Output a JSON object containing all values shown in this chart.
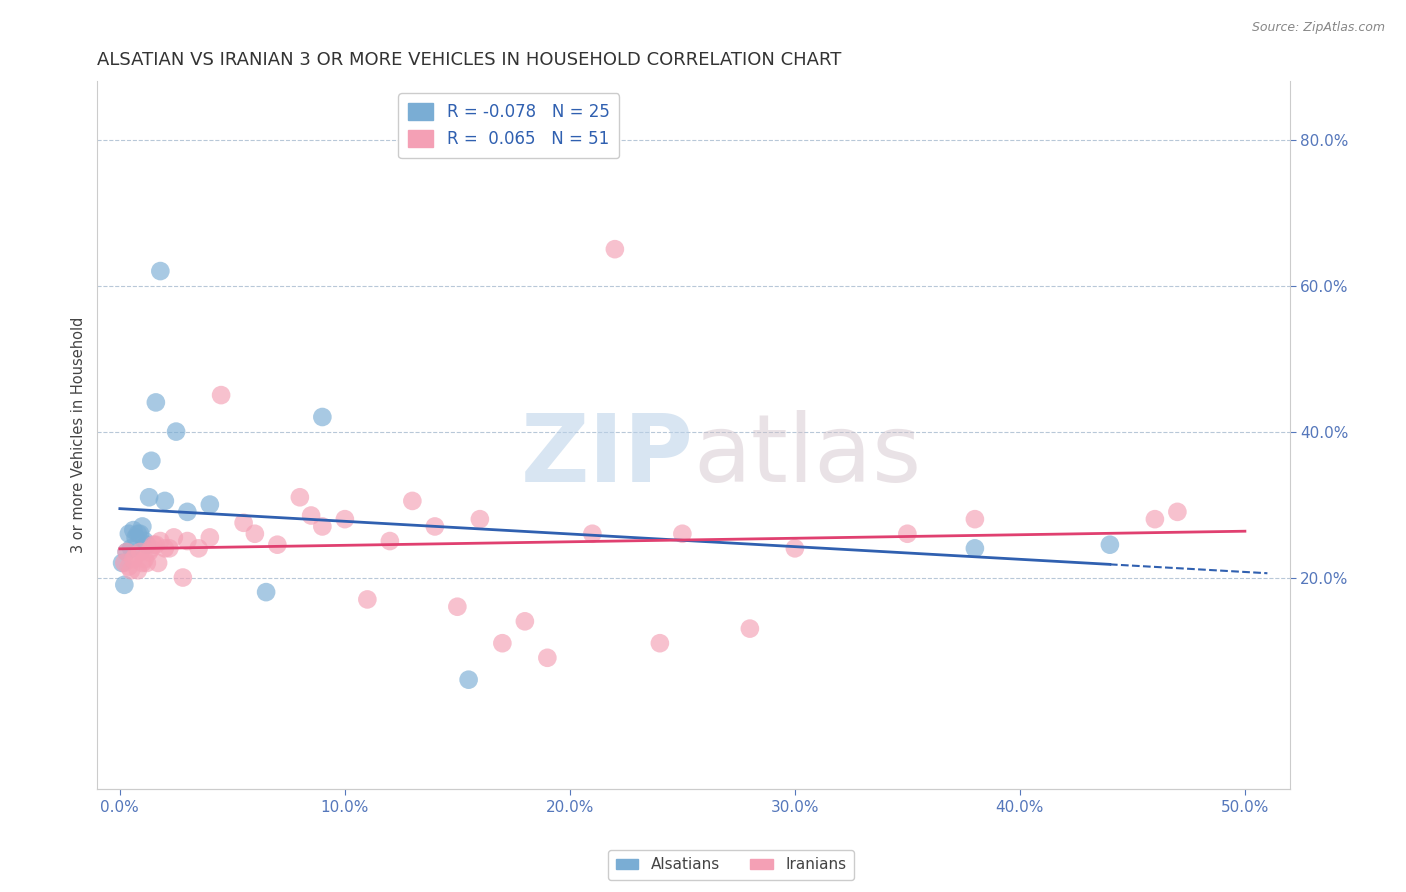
{
  "title": "ALSATIAN VS IRANIAN 3 OR MORE VEHICLES IN HOUSEHOLD CORRELATION CHART",
  "source": "Source: ZipAtlas.com",
  "ylabel": "3 or more Vehicles in Household",
  "x_tick_labels": [
    "0.0%",
    "10.0%",
    "20.0%",
    "30.0%",
    "40.0%",
    "50.0%"
  ],
  "x_ticks": [
    0.0,
    10.0,
    20.0,
    30.0,
    40.0,
    50.0
  ],
  "y_tick_labels_right": [
    "20.0%",
    "40.0%",
    "60.0%",
    "80.0%"
  ],
  "y_ticks_right": [
    20.0,
    40.0,
    60.0,
    80.0
  ],
  "xlim": [
    -1.0,
    52.0
  ],
  "ylim": [
    -9.0,
    88.0
  ],
  "legend_alsatian_label": "R = -0.078   N = 25",
  "legend_iranian_label": "R =  0.065   N = 51",
  "alsatian_color": "#7aadd4",
  "iranian_color": "#f4a0b5",
  "trend_alsatian_color": "#3060b0",
  "trend_iranian_color": "#e04070",
  "alsatian_x": [
    0.1,
    0.2,
    0.3,
    0.4,
    0.5,
    0.6,
    0.7,
    0.8,
    0.9,
    1.0,
    1.1,
    1.2,
    1.3,
    1.4,
    1.6,
    1.8,
    2.0,
    2.5,
    3.0,
    4.0,
    6.5,
    9.0,
    15.5,
    38.0,
    44.0
  ],
  "alsatian_y": [
    22.0,
    19.0,
    23.5,
    26.0,
    24.0,
    26.5,
    25.5,
    26.0,
    26.0,
    27.0,
    25.0,
    24.5,
    31.0,
    36.0,
    44.0,
    62.0,
    30.5,
    40.0,
    29.0,
    30.0,
    18.0,
    42.0,
    6.0,
    24.0,
    24.5
  ],
  "iranian_x": [
    0.2,
    0.3,
    0.4,
    0.5,
    0.6,
    0.7,
    0.8,
    0.9,
    1.0,
    1.1,
    1.2,
    1.3,
    1.4,
    1.5,
    1.6,
    1.7,
    1.8,
    2.0,
    2.2,
    2.4,
    2.8,
    3.0,
    3.5,
    4.0,
    4.5,
    5.5,
    6.0,
    7.0,
    8.0,
    8.5,
    9.0,
    10.0,
    11.0,
    12.0,
    13.0,
    14.0,
    15.0,
    16.0,
    17.0,
    18.0,
    19.0,
    21.0,
    22.0,
    24.0,
    25.0,
    28.0,
    30.0,
    35.0,
    38.0,
    46.0,
    47.0
  ],
  "iranian_y": [
    22.0,
    23.5,
    21.5,
    21.0,
    22.5,
    23.0,
    21.0,
    23.5,
    22.0,
    22.5,
    22.0,
    23.5,
    24.0,
    24.5,
    24.5,
    22.0,
    25.0,
    24.0,
    24.0,
    25.5,
    20.0,
    25.0,
    24.0,
    25.5,
    45.0,
    27.5,
    26.0,
    24.5,
    31.0,
    28.5,
    27.0,
    28.0,
    17.0,
    25.0,
    30.5,
    27.0,
    16.0,
    28.0,
    11.0,
    14.0,
    9.0,
    26.0,
    65.0,
    11.0,
    26.0,
    13.0,
    24.0,
    26.0,
    28.0,
    28.0,
    29.0
  ],
  "watermark_zip": "ZIP",
  "watermark_atlas": "atlas",
  "bottom_legend_alsatian": "Alsatians",
  "bottom_legend_iranian": "Iranians",
  "background_color": "#ffffff",
  "grid_color": "#b8c8d8",
  "title_fontsize": 13,
  "tick_label_color": "#5577bb",
  "alsatian_trend_x_solid_end": 44.0,
  "alsatian_trend_x_dash_end": 51.0
}
